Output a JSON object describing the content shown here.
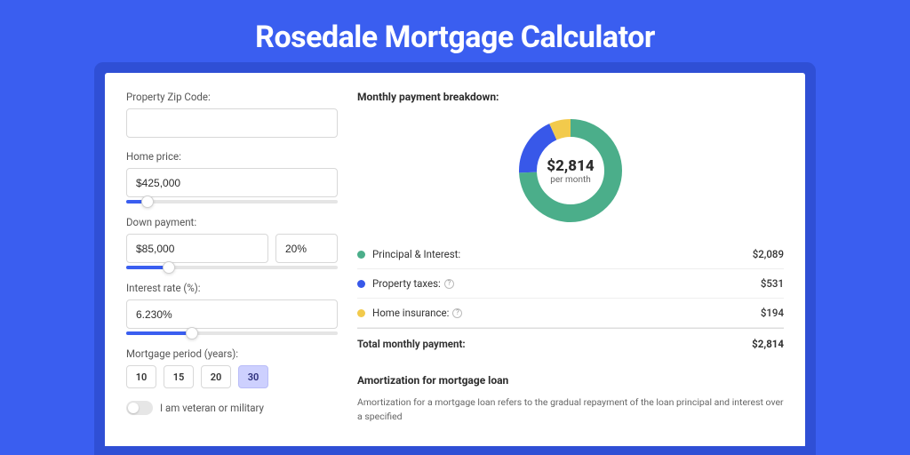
{
  "colors": {
    "page_bg": "#3a5ef0",
    "card_shadow": "#2f4fd5",
    "accent": "#3a5ef0",
    "text": "#2c2c2c",
    "muted": "#555",
    "border": "#d8d8d8",
    "series_principal": "#4bae8a",
    "series_tax": "#3858e9",
    "series_insurance": "#f2ca4c",
    "donut_stroke_bg": "#eeeeee"
  },
  "title": "Rosedale Mortgage Calculator",
  "form": {
    "zip": {
      "label": "Property Zip Code:",
      "value": ""
    },
    "home_price": {
      "label": "Home price:",
      "value": "$425,000",
      "slider_fill_pct": 10
    },
    "down_payment": {
      "label": "Down payment:",
      "amount": "$85,000",
      "pct": "20%",
      "slider_fill_pct": 20
    },
    "interest": {
      "label": "Interest rate (%):",
      "value": "6.230%",
      "slider_fill_pct": 31
    },
    "period": {
      "label": "Mortgage period (years):",
      "options": [
        "10",
        "15",
        "20",
        "30"
      ],
      "active_index": 3
    },
    "military": {
      "label": "I am veteran or military",
      "checked": false
    }
  },
  "breakdown": {
    "title": "Monthly payment breakdown:",
    "donut": {
      "center_value": "$2,814",
      "center_sub": "per month",
      "radius": 48,
      "stroke_width": 20,
      "slices": [
        {
          "key": "principal",
          "fraction": 0.742,
          "color": "#4bae8a"
        },
        {
          "key": "tax",
          "fraction": 0.189,
          "color": "#3858e9"
        },
        {
          "key": "insurance",
          "fraction": 0.069,
          "color": "#f2ca4c"
        }
      ]
    },
    "rows": [
      {
        "dot": "#4bae8a",
        "label": "Principal & Interest:",
        "amount": "$2,089",
        "help": false
      },
      {
        "dot": "#3858e9",
        "label": "Property taxes:",
        "amount": "$531",
        "help": true
      },
      {
        "dot": "#f2ca4c",
        "label": "Home insurance:",
        "amount": "$194",
        "help": true
      }
    ],
    "total": {
      "label": "Total monthly payment:",
      "amount": "$2,814"
    }
  },
  "amortization": {
    "title": "Amortization for mortgage loan",
    "text": "Amortization for a mortgage loan refers to the gradual repayment of the loan principal and interest over a specified"
  }
}
